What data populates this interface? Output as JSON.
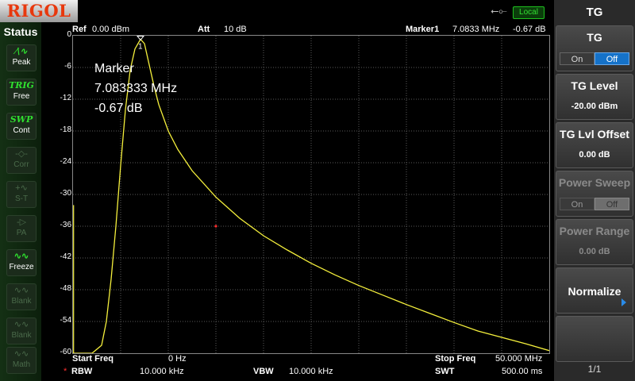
{
  "brand": "RIGOL",
  "top_status": {
    "usb_icon": "usb-icon",
    "local": "Local"
  },
  "header": {
    "ref_label": "Ref",
    "ref_value": "0.00 dBm",
    "att_label": "Att",
    "att_value": "10 dB",
    "marker_label": "Marker1",
    "marker_freq": "7.0833 MHz",
    "marker_level": "-0.67 dB"
  },
  "status_panel": {
    "title": "Status",
    "items": [
      {
        "icon": "peak-icon",
        "label": "Peak",
        "state": "on"
      },
      {
        "icon": "TRIG",
        "label": "Free",
        "state": "on"
      },
      {
        "icon": "SWP",
        "label": "Cont",
        "state": "on"
      },
      {
        "icon": "corr-icon",
        "label": "Corr",
        "state": "dim"
      },
      {
        "icon": "st-icon",
        "label": "S-T",
        "state": "dim"
      },
      {
        "icon": "pa-icon",
        "label": "PA",
        "state": "dim"
      },
      {
        "icon": "freeze-icon",
        "label": "Freeze",
        "state": "on"
      },
      {
        "icon": "blank-icon",
        "label": "Blank",
        "state": "dim"
      },
      {
        "icon": "blank-icon",
        "label": "Blank",
        "state": "dim"
      },
      {
        "icon": "math-icon",
        "label": "Math",
        "state": "dim"
      }
    ]
  },
  "marker_readout": {
    "title": "Marker",
    "freq": "7.083333 MHz",
    "level": "-0.67 dB"
  },
  "chart_data": {
    "type": "line",
    "ylabel": "",
    "xlabel": "",
    "xlim": [
      0,
      50
    ],
    "ylim": [
      -60,
      0
    ],
    "yticks": [
      "0",
      "-6",
      "-12",
      "-18",
      "-24",
      "-30",
      "-36",
      "-42",
      "-48",
      "-54",
      "-60"
    ],
    "grid": true,
    "trace_color": "#f5f03c",
    "series": [
      {
        "x": [
          0.0,
          2.0,
          3.0,
          3.5,
          4.0,
          4.5,
          5.0,
          5.5,
          6.0,
          6.5,
          7.08,
          7.5,
          8.0,
          8.5,
          9.0,
          10.0,
          11.0,
          12.5,
          15.0,
          17.5,
          20.0,
          22.5,
          25.0,
          27.5,
          30.0,
          32.5,
          35.0,
          37.5,
          40.0,
          42.5,
          45.0,
          47.5,
          50.0
        ],
        "y": [
          -60.0,
          -60.0,
          -58.5,
          -54.0,
          -46.0,
          -36.0,
          -24.5,
          -14.0,
          -6.5,
          -2.5,
          -0.67,
          -1.5,
          -5.5,
          -9.5,
          -13.0,
          -18.0,
          -21.5,
          -25.5,
          -30.5,
          -34.5,
          -37.8,
          -40.5,
          -43.0,
          -45.2,
          -47.2,
          -49.0,
          -50.8,
          -52.5,
          -54.2,
          -55.8,
          -57.0,
          -58.2,
          -59.5
        ]
      }
    ],
    "marker": {
      "label": "1",
      "x": 7.0833,
      "y": -0.67
    },
    "secondary_marker": {
      "x": 15.0,
      "y": -36.0,
      "color": "#ff3030"
    }
  },
  "footer": {
    "start_label": "Start Freq",
    "start_value": "0 Hz",
    "stop_label": "Stop Freq",
    "stop_value": "50.000 MHz",
    "rbw_star": "*",
    "rbw_label": "RBW",
    "rbw_value": "10.000 kHz",
    "vbw_label": "VBW",
    "vbw_value": "10.000 kHz",
    "swt_label": "SWT",
    "swt_value": "500.00 ms"
  },
  "menu": {
    "title": "TG",
    "tg": {
      "label": "TG",
      "on": "On",
      "off": "Off",
      "selected": "Off"
    },
    "tg_level": {
      "label": "TG Level",
      "value": "-20.00 dBm"
    },
    "tg_offset": {
      "label": "TG Lvl Offset",
      "value": "0.00 dB"
    },
    "power_sweep": {
      "label": "Power Sweep",
      "on": "On",
      "off": "Off",
      "selected": "Off"
    },
    "power_range": {
      "label": "Power Range",
      "value": "0.00 dB"
    },
    "normalize": {
      "label": "Normalize"
    },
    "page": "1/1"
  }
}
